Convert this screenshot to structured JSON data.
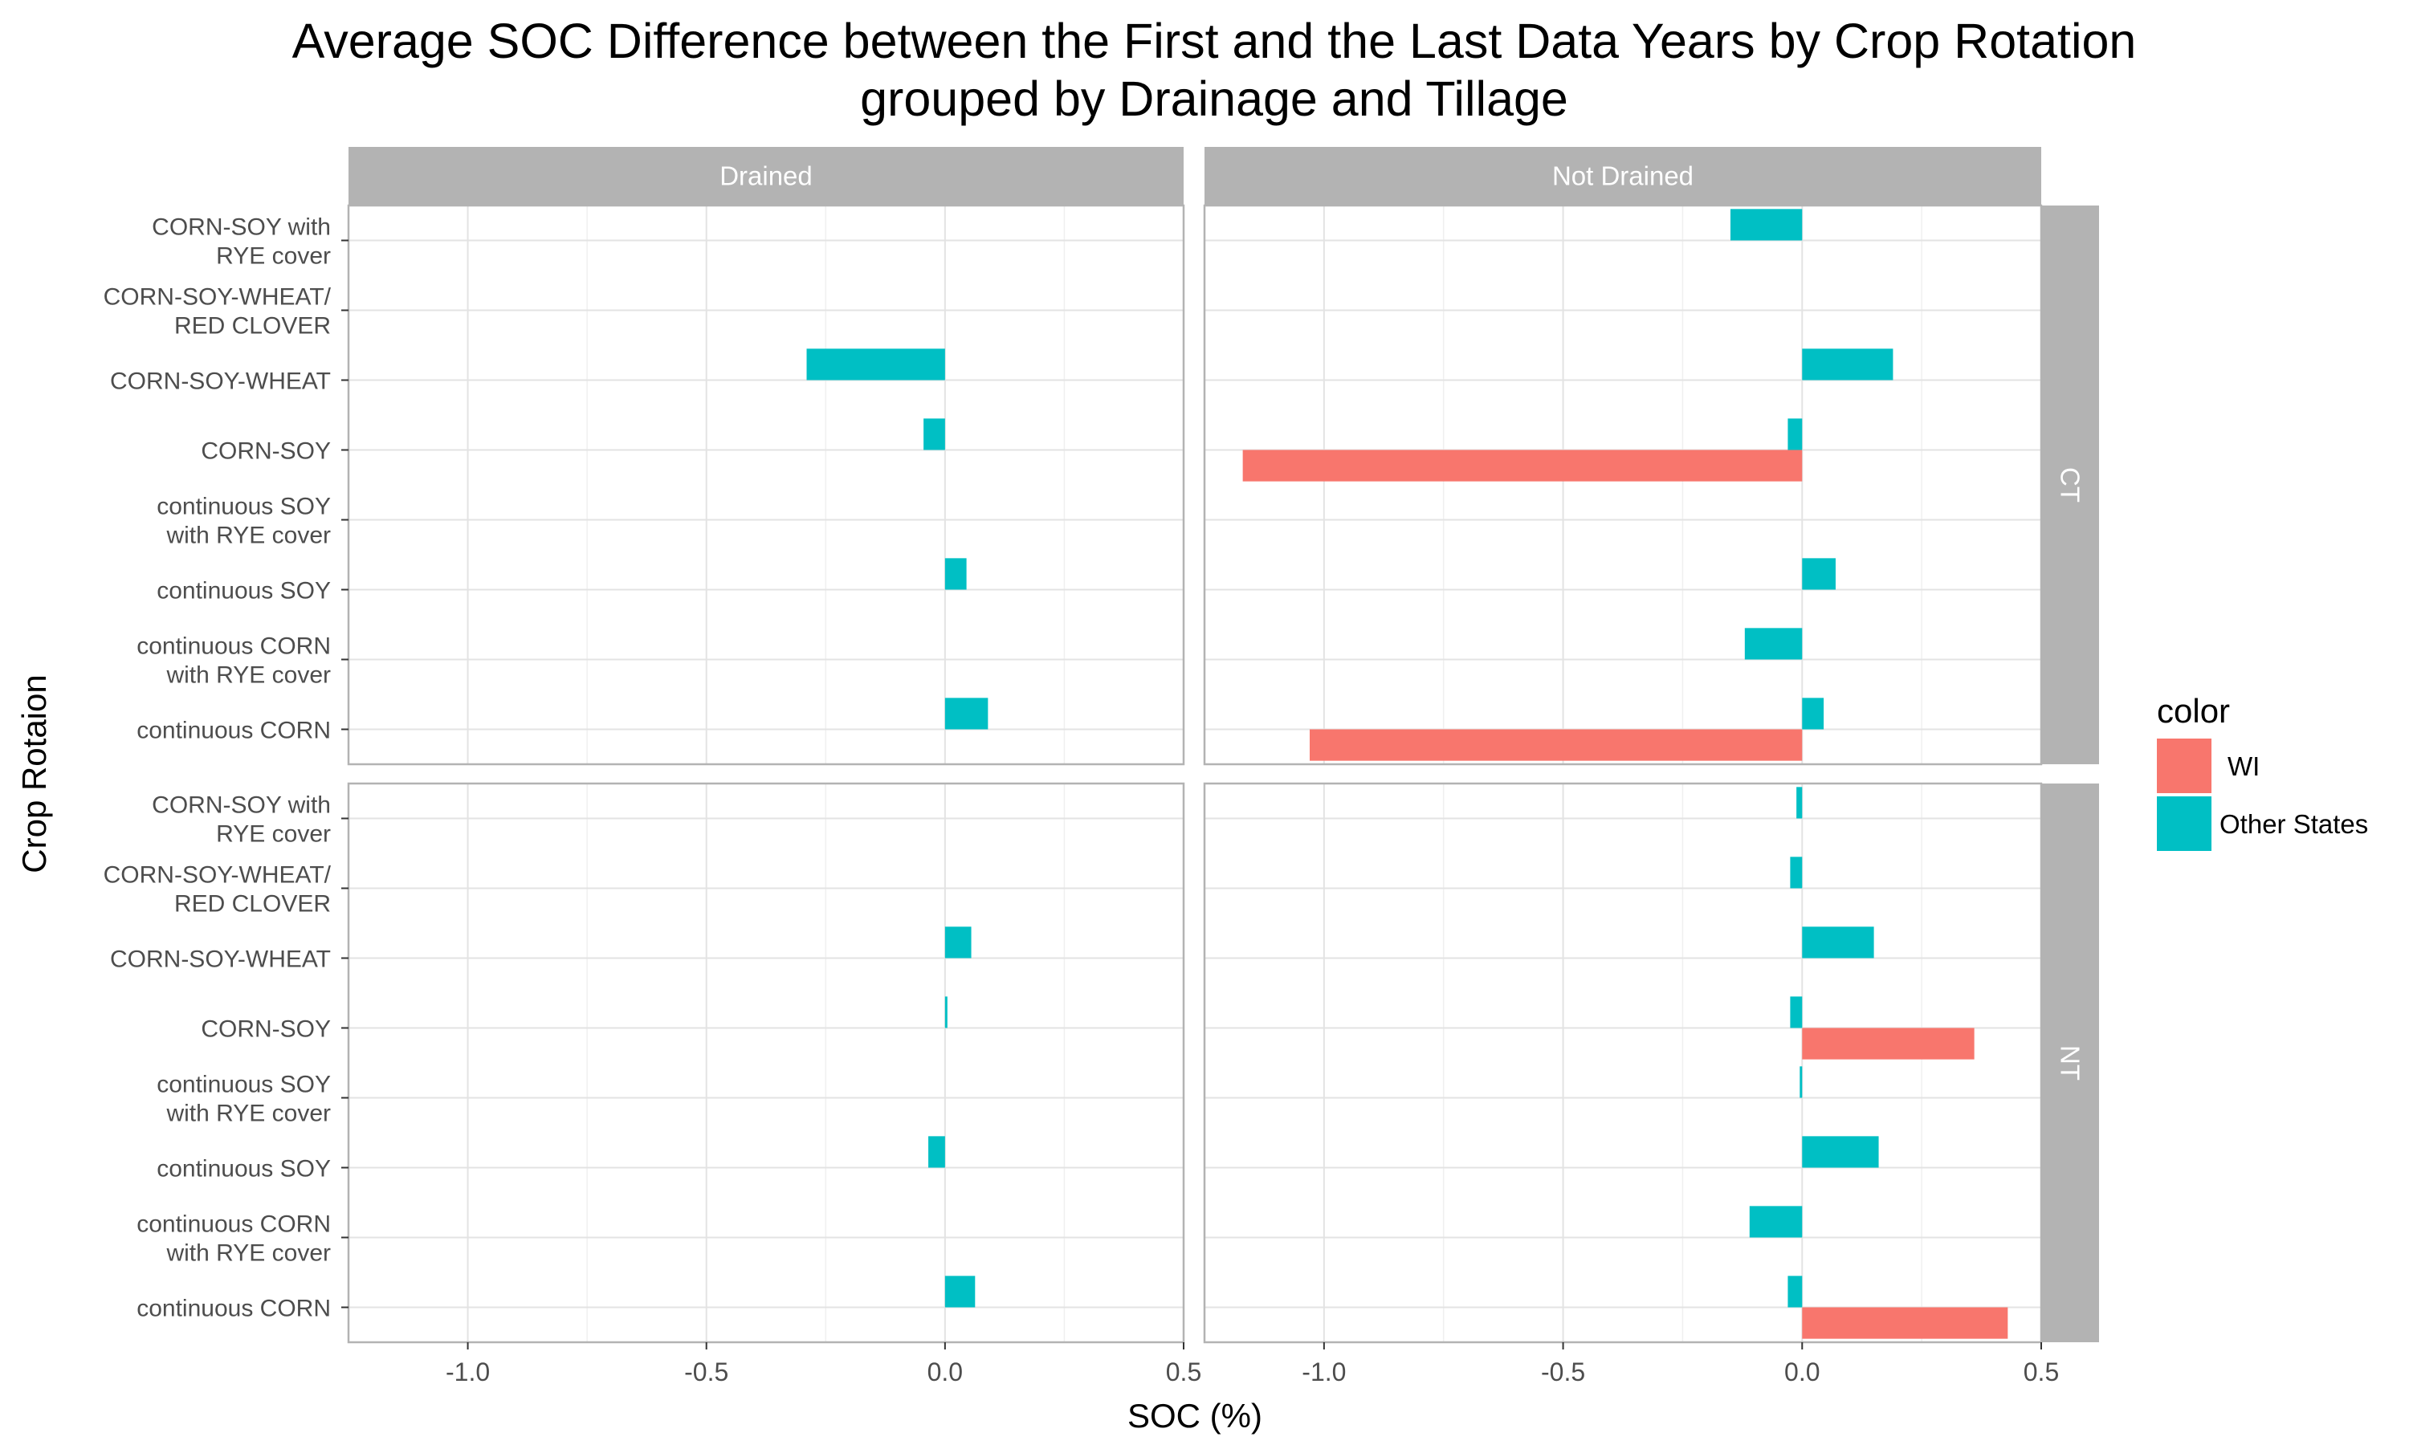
{
  "chart_data": {
    "type": "bar",
    "orientation": "horizontal",
    "title": "Average SOC Difference between the First and the Last Data Years by Crop Rotation\ngrouped by Drainage and Tillage",
    "xlabel": "SOC (%)",
    "ylabel": "Crop Rotaion",
    "xlim": [
      -1.25,
      0.5
    ],
    "x_ticks": [
      -1.0,
      -0.5,
      0.0,
      0.5
    ],
    "x_tick_labels": [
      "-1.0",
      "-0.5",
      "0.0",
      "0.5"
    ],
    "grid": true,
    "legend": {
      "title": "color",
      "position": "right",
      "entries": [
        {
          "name": "WI",
          "color": "#F8766D"
        },
        {
          "name": "Other States",
          "color": "#00BFC4"
        }
      ]
    },
    "categories": [
      "CORN-SOY with\nRYE cover",
      "CORN-SOY-WHEAT/\nRED CLOVER",
      "CORN-SOY-WHEAT",
      "CORN-SOY",
      "continuous SOY\nwith RYE cover",
      "continuous SOY",
      "continuous CORN\nwith RYE cover",
      "continuous CORN"
    ],
    "facet_cols": [
      "Drained",
      "Not Drained"
    ],
    "facet_rows": [
      "CT",
      "NT"
    ],
    "panels": [
      {
        "col": "Drained",
        "row": "CT",
        "series": [
          {
            "name": "Other States",
            "values": [
              null,
              null,
              -0.29,
              -0.045,
              null,
              0.045,
              null,
              0.09
            ]
          },
          {
            "name": "WI",
            "values": [
              null,
              null,
              null,
              null,
              null,
              null,
              null,
              null
            ]
          }
        ]
      },
      {
        "col": "Not Drained",
        "row": "CT",
        "series": [
          {
            "name": "Other States",
            "values": [
              -0.15,
              null,
              0.19,
              -0.03,
              null,
              0.07,
              -0.12,
              0.045
            ]
          },
          {
            "name": "WI",
            "values": [
              null,
              null,
              null,
              -1.17,
              null,
              null,
              null,
              -1.03
            ]
          }
        ]
      },
      {
        "col": "Drained",
        "row": "NT",
        "series": [
          {
            "name": "Other States",
            "values": [
              null,
              null,
              0.055,
              0.005,
              null,
              -0.035,
              null,
              0.063
            ]
          },
          {
            "name": "WI",
            "values": [
              null,
              null,
              null,
              null,
              null,
              null,
              null,
              null
            ]
          }
        ]
      },
      {
        "col": "Not Drained",
        "row": "NT",
        "series": [
          {
            "name": "Other States",
            "values": [
              -0.012,
              -0.025,
              0.15,
              -0.025,
              -0.005,
              0.16,
              -0.11,
              -0.03
            ]
          },
          {
            "name": "WI",
            "values": [
              null,
              null,
              null,
              0.36,
              null,
              null,
              null,
              0.43
            ]
          }
        ]
      }
    ]
  }
}
